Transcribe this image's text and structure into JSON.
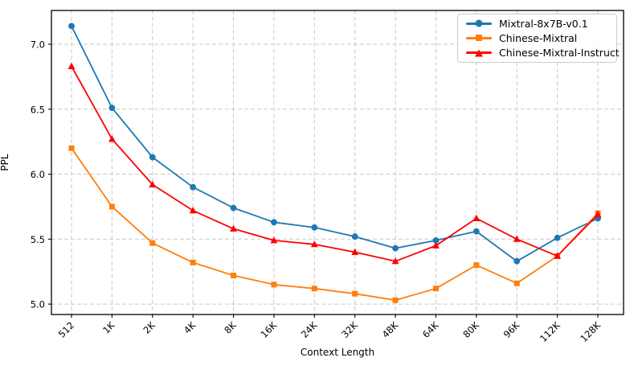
{
  "chart_data": {
    "type": "line",
    "title": "",
    "xlabel": "Context Length",
    "ylabel": "PPL",
    "categories": [
      "512",
      "1K",
      "2K",
      "4K",
      "8K",
      "16K",
      "24K",
      "32K",
      "48K",
      "64K",
      "80K",
      "96K",
      "112K",
      "128K"
    ],
    "yticks": [
      5.0,
      5.5,
      6.0,
      6.5,
      7.0
    ],
    "ytick_labels": [
      "5.0",
      "5.5",
      "6.0",
      "6.5",
      "7.0"
    ],
    "ylim": [
      4.92,
      7.26
    ],
    "grid": true,
    "grid_style": "dashed",
    "legend_position": "upper right",
    "series": [
      {
        "name": "Mixtral-8x7B-v0.1",
        "color": "#1f77b4",
        "marker": "circle",
        "values": [
          7.14,
          6.51,
          6.13,
          5.9,
          5.74,
          5.63,
          5.59,
          5.52,
          5.43,
          5.49,
          5.56,
          5.33,
          5.51,
          5.66
        ]
      },
      {
        "name": "Chinese-Mixtral",
        "color": "#ff7f0e",
        "marker": "square",
        "values": [
          6.2,
          5.75,
          5.47,
          5.32,
          5.22,
          5.15,
          5.12,
          5.08,
          5.03,
          5.12,
          5.3,
          5.16,
          5.37,
          5.7
        ]
      },
      {
        "name": "Chinese-Mixtral-Instruct",
        "color": "#ff0000",
        "marker": "triangle",
        "values": [
          6.83,
          6.27,
          5.92,
          5.72,
          5.58,
          5.49,
          5.46,
          5.4,
          5.33,
          5.45,
          5.66,
          5.5,
          5.37,
          5.69
        ]
      }
    ]
  }
}
